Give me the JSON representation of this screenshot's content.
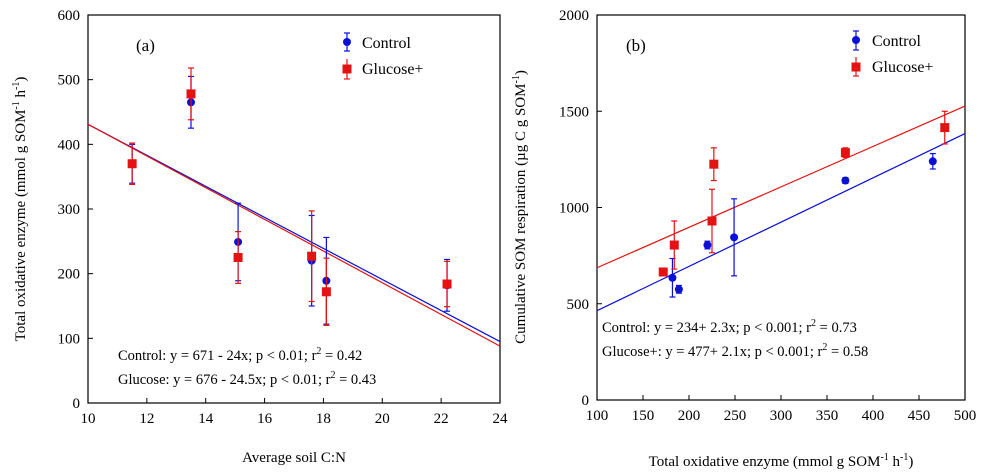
{
  "chart_data": [
    {
      "type": "scatter",
      "panel_label": "(a)",
      "xlabel": "Average soil C:N",
      "ylabel": "Total oxidative enzyme (mmol g SOM",
      "ylabel_sup1": "-1",
      "ylabel_mid": " h",
      "ylabel_sup2": "-1",
      "ylabel_end": ")",
      "xlim": [
        10,
        24
      ],
      "ylim": [
        0,
        600
      ],
      "xticks": [
        "10",
        "12",
        "14",
        "16",
        "18",
        "20",
        "22",
        "24"
      ],
      "yticks": [
        "0",
        "100",
        "200",
        "300",
        "400",
        "500",
        "600"
      ],
      "legend": [
        "Control",
        "Glucose+"
      ],
      "colors": {
        "Control": "#0a10d8",
        "Glucose+": "#e41212"
      },
      "series": [
        {
          "name": "Control",
          "points": [
            {
              "x": 11.5,
              "y": 370,
              "err": 30
            },
            {
              "x": 13.5,
              "y": 465,
              "err": 40
            },
            {
              "x": 15.1,
              "y": 249,
              "err": 60
            },
            {
              "x": 17.6,
              "y": 220,
              "err": 70
            },
            {
              "x": 18.1,
              "y": 189,
              "err": 67
            },
            {
              "x": 22.2,
              "y": 182,
              "err": 40
            }
          ],
          "fit": {
            "intercept": 671,
            "slope": -24
          }
        },
        {
          "name": "Glucose+",
          "points": [
            {
              "x": 11.5,
              "y": 370,
              "err": 32
            },
            {
              "x": 13.5,
              "y": 478,
              "err": 40
            },
            {
              "x": 15.1,
              "y": 225,
              "err": 40
            },
            {
              "x": 17.6,
              "y": 227,
              "err": 70
            },
            {
              "x": 18.1,
              "y": 172,
              "err": 52
            },
            {
              "x": 22.2,
              "y": 184,
              "err": 35
            }
          ],
          "fit": {
            "intercept": 676,
            "slope": -24.5
          }
        }
      ],
      "annotations": [
        "Control: y = 671 - 24x; p < 0.01; r",
        "Glucose: y = 676 - 24.5x; p < 0.01; r"
      ],
      "annotation_r2": [
        " = 0.42",
        " = 0.43"
      ],
      "sup2": "2"
    },
    {
      "type": "scatter",
      "panel_label": "(b)",
      "xlabel": "Total oxidative enzyme (mmol g SOM",
      "xlabel_sup1": "-1",
      "xlabel_mid": " h",
      "xlabel_sup2": "-1",
      "xlabel_end": ")",
      "ylabel": "Cumulative SOM respiration (µg C g SOM",
      "ylabel_sup1": "-1",
      "ylabel_end": ")",
      "xlim": [
        100,
        500
      ],
      "ylim": [
        0,
        2000
      ],
      "xticks": [
        "100",
        "150",
        "200",
        "250",
        "300",
        "350",
        "400",
        "450",
        "500"
      ],
      "yticks": [
        "0",
        "500",
        "1000",
        "1500",
        "2000"
      ],
      "legend": [
        "Control",
        "Glucose+"
      ],
      "colors": {
        "Control": "#0a10d8",
        "Glucose+": "#e41212"
      },
      "series": [
        {
          "name": "Control",
          "points": [
            {
              "x": 182,
              "y": 635,
              "err": 100
            },
            {
              "x": 189,
              "y": 575,
              "err": 20
            },
            {
              "x": 220,
              "y": 805,
              "err": 20
            },
            {
              "x": 249,
              "y": 845,
              "err": 200
            },
            {
              "x": 370,
              "y": 1140,
              "err": 15
            },
            {
              "x": 465,
              "y": 1240,
              "err": 40
            }
          ],
          "fit": {
            "intercept": 234,
            "slope": 2.3
          }
        },
        {
          "name": "Glucose+",
          "points": [
            {
              "x": 172,
              "y": 665,
              "err": 15
            },
            {
              "x": 184,
              "y": 805,
              "err": 125
            },
            {
              "x": 225,
              "y": 930,
              "err": 165
            },
            {
              "x": 227,
              "y": 1225,
              "err": 85
            },
            {
              "x": 370,
              "y": 1285,
              "err": 25
            },
            {
              "x": 478,
              "y": 1415,
              "err": 85
            }
          ],
          "fit": {
            "intercept": 477,
            "slope": 2.1
          }
        }
      ],
      "annotations": [
        "Control: y = 234+ 2.3x; p < 0.001; r",
        "Glucose+: y = 477+ 2.1x; p < 0.001; r"
      ],
      "annotation_r2": [
        " = 0.73",
        " = 0.58"
      ],
      "sup2": "2"
    }
  ]
}
